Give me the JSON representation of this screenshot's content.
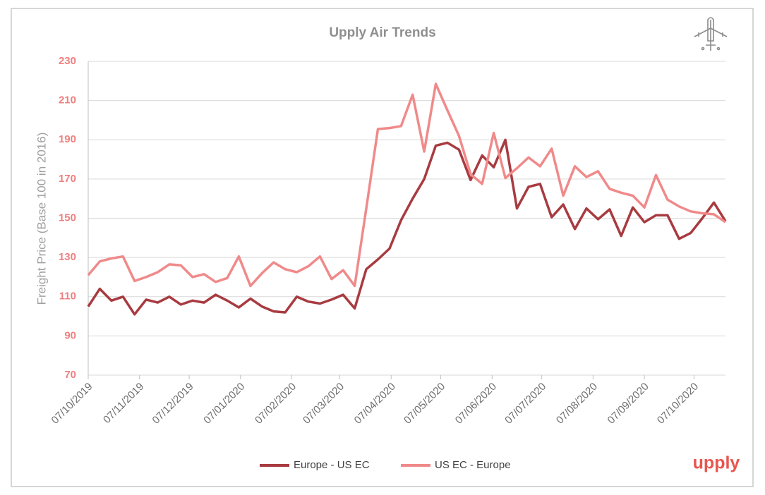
{
  "chart_data": {
    "type": "line",
    "title": "Upply Air Trends",
    "y_label": "Freight Price (Base 100 in 2016)",
    "brand": "upply",
    "x": [
      "07/10/2019",
      "14/10/2019",
      "21/10/2019",
      "28/10/2019",
      "04/11/2019",
      "11/11/2019",
      "18/11/2019",
      "25/11/2019",
      "02/12/2019",
      "09/12/2019",
      "16/12/2019",
      "23/12/2019",
      "30/12/2019",
      "06/01/2020",
      "13/01/2020",
      "20/01/2020",
      "27/01/2020",
      "03/02/2020",
      "10/02/2020",
      "17/02/2020",
      "24/02/2020",
      "02/03/2020",
      "09/03/2020",
      "16/03/2020",
      "23/03/2020",
      "30/03/2020",
      "06/04/2020",
      "13/04/2020",
      "20/04/2020",
      "27/04/2020",
      "04/05/2020",
      "11/05/2020",
      "18/05/2020",
      "25/05/2020",
      "01/06/2020",
      "08/06/2020",
      "15/06/2020",
      "22/06/2020",
      "29/06/2020",
      "06/07/2020",
      "13/07/2020",
      "20/07/2020",
      "27/07/2020",
      "03/08/2020",
      "10/08/2020",
      "17/08/2020",
      "24/08/2020",
      "31/08/2020",
      "07/09/2020",
      "14/09/2020",
      "21/09/2020",
      "28/09/2020",
      "05/10/2020",
      "12/10/2020",
      "19/10/2020",
      "26/10/2020"
    ],
    "xlim": [
      "07/10/2019",
      "26/10/2020"
    ],
    "xticks": [
      "07/10/2019",
      "07/11/2019",
      "07/12/2019",
      "07/01/2020",
      "07/02/2020",
      "07/03/2020",
      "07/04/2020",
      "07/05/2020",
      "07/06/2020",
      "07/07/2020",
      "07/08/2020",
      "07/09/2020",
      "07/10/2020"
    ],
    "ylim": [
      70,
      230
    ],
    "yticks": [
      70,
      90,
      110,
      130,
      150,
      170,
      190,
      210,
      230
    ],
    "grid": true,
    "legend": "bottom",
    "series": [
      {
        "name": "Europe - US EC",
        "color": "#a83b40",
        "values": [
          105,
          114,
          108,
          110,
          101,
          108.5,
          107,
          110,
          106,
          108,
          107,
          111,
          108,
          104.5,
          109,
          105,
          102.5,
          102,
          110,
          107.5,
          106.5,
          108.5,
          111,
          104,
          124,
          129,
          134.5,
          149,
          160,
          170,
          187,
          188.5,
          185,
          169.5,
          182,
          176,
          190,
          155,
          166,
          167.5,
          150.5,
          157,
          144.5,
          155,
          149.5,
          154.5,
          141,
          155.5,
          148,
          151.5,
          151.5,
          139.5,
          142.5,
          150,
          158,
          148.5
        ]
      },
      {
        "name": "US EC - Europe",
        "color": "#f08a8a",
        "values": [
          121,
          128,
          129.5,
          130.5,
          118,
          120,
          122.5,
          126.5,
          126,
          120,
          121.5,
          117.5,
          119.5,
          130.5,
          115.5,
          122,
          127.5,
          124,
          122.5,
          125.5,
          130.5,
          119,
          123.5,
          115.5,
          155,
          195.5,
          196,
          197,
          213,
          184,
          218.5,
          205,
          192,
          172.5,
          167.5,
          193.5,
          170.5,
          175.5,
          181,
          176.5,
          185.5,
          161.5,
          176.5,
          171,
          174,
          165,
          163,
          161.5,
          155.5,
          172,
          159.5,
          156,
          153.5,
          152.5,
          152,
          148
        ]
      }
    ]
  }
}
